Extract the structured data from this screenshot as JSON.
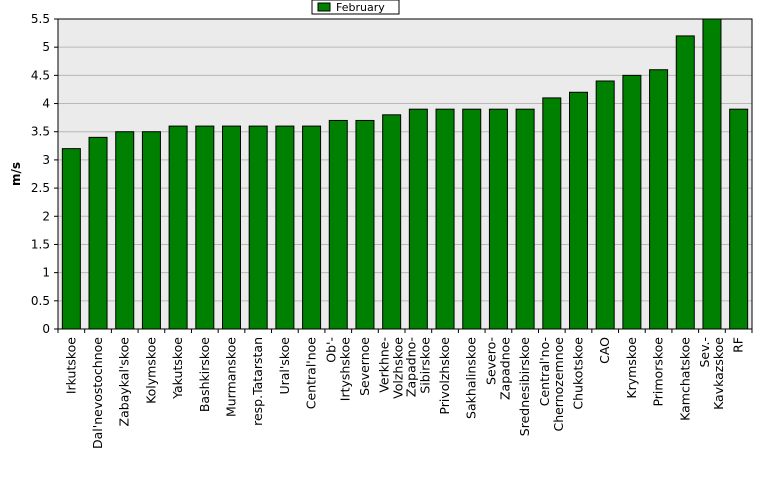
{
  "chart_data": {
    "type": "bar",
    "ylabel": "m/s",
    "ylim": [
      0,
      5.5
    ],
    "yticks": [
      "0",
      "0.5",
      "1",
      "1.5",
      "2",
      "2.5",
      "3",
      "3.5",
      "4",
      "4.5",
      "5",
      "5.5"
    ],
    "grid": true,
    "legend_position": "top-center",
    "colors": {
      "bar": "#008000",
      "plot_background": "#ebebeb",
      "grid": "#b8b8b8"
    },
    "categories": [
      [
        "Irkutskoe"
      ],
      [
        "Dal'nevostochnoe"
      ],
      [
        "Zabaykal'skoe"
      ],
      [
        "Kolymskoe"
      ],
      [
        "Yakutskoe"
      ],
      [
        "Bashkirskoe"
      ],
      [
        "Murmanskoe"
      ],
      [
        "resp.Tatarstan"
      ],
      [
        "Ural'skoe"
      ],
      [
        "Central'noe"
      ],
      [
        "Ob'-",
        "Irtyshskoe"
      ],
      [
        "Severnoe"
      ],
      [
        "Verkhne-",
        "Volzhskoe"
      ],
      [
        "Zapadno-",
        "Sibirskoe"
      ],
      [
        "Privolzhskoe"
      ],
      [
        "Sakhalinskoe"
      ],
      [
        "Severo-",
        "Zapadnoe"
      ],
      [
        "Srednesibirskoe"
      ],
      [
        "Central'no-",
        "Chernozemnoe"
      ],
      [
        "Chukotskoe"
      ],
      [
        "CAO"
      ],
      [
        "Krymskoe"
      ],
      [
        "Primorskoe"
      ],
      [
        "Kamchatskoe"
      ],
      [
        "Sev.-",
        "Kavkazskoe"
      ],
      [
        "RF"
      ]
    ],
    "series": [
      {
        "name": "February",
        "values": [
          3.2,
          3.4,
          3.5,
          3.5,
          3.6,
          3.6,
          3.6,
          3.6,
          3.6,
          3.6,
          3.7,
          3.7,
          3.8,
          3.9,
          3.9,
          3.9,
          3.9,
          3.9,
          4.1,
          4.2,
          4.4,
          4.5,
          4.6,
          5.2,
          5.5,
          3.9
        ]
      }
    ]
  }
}
